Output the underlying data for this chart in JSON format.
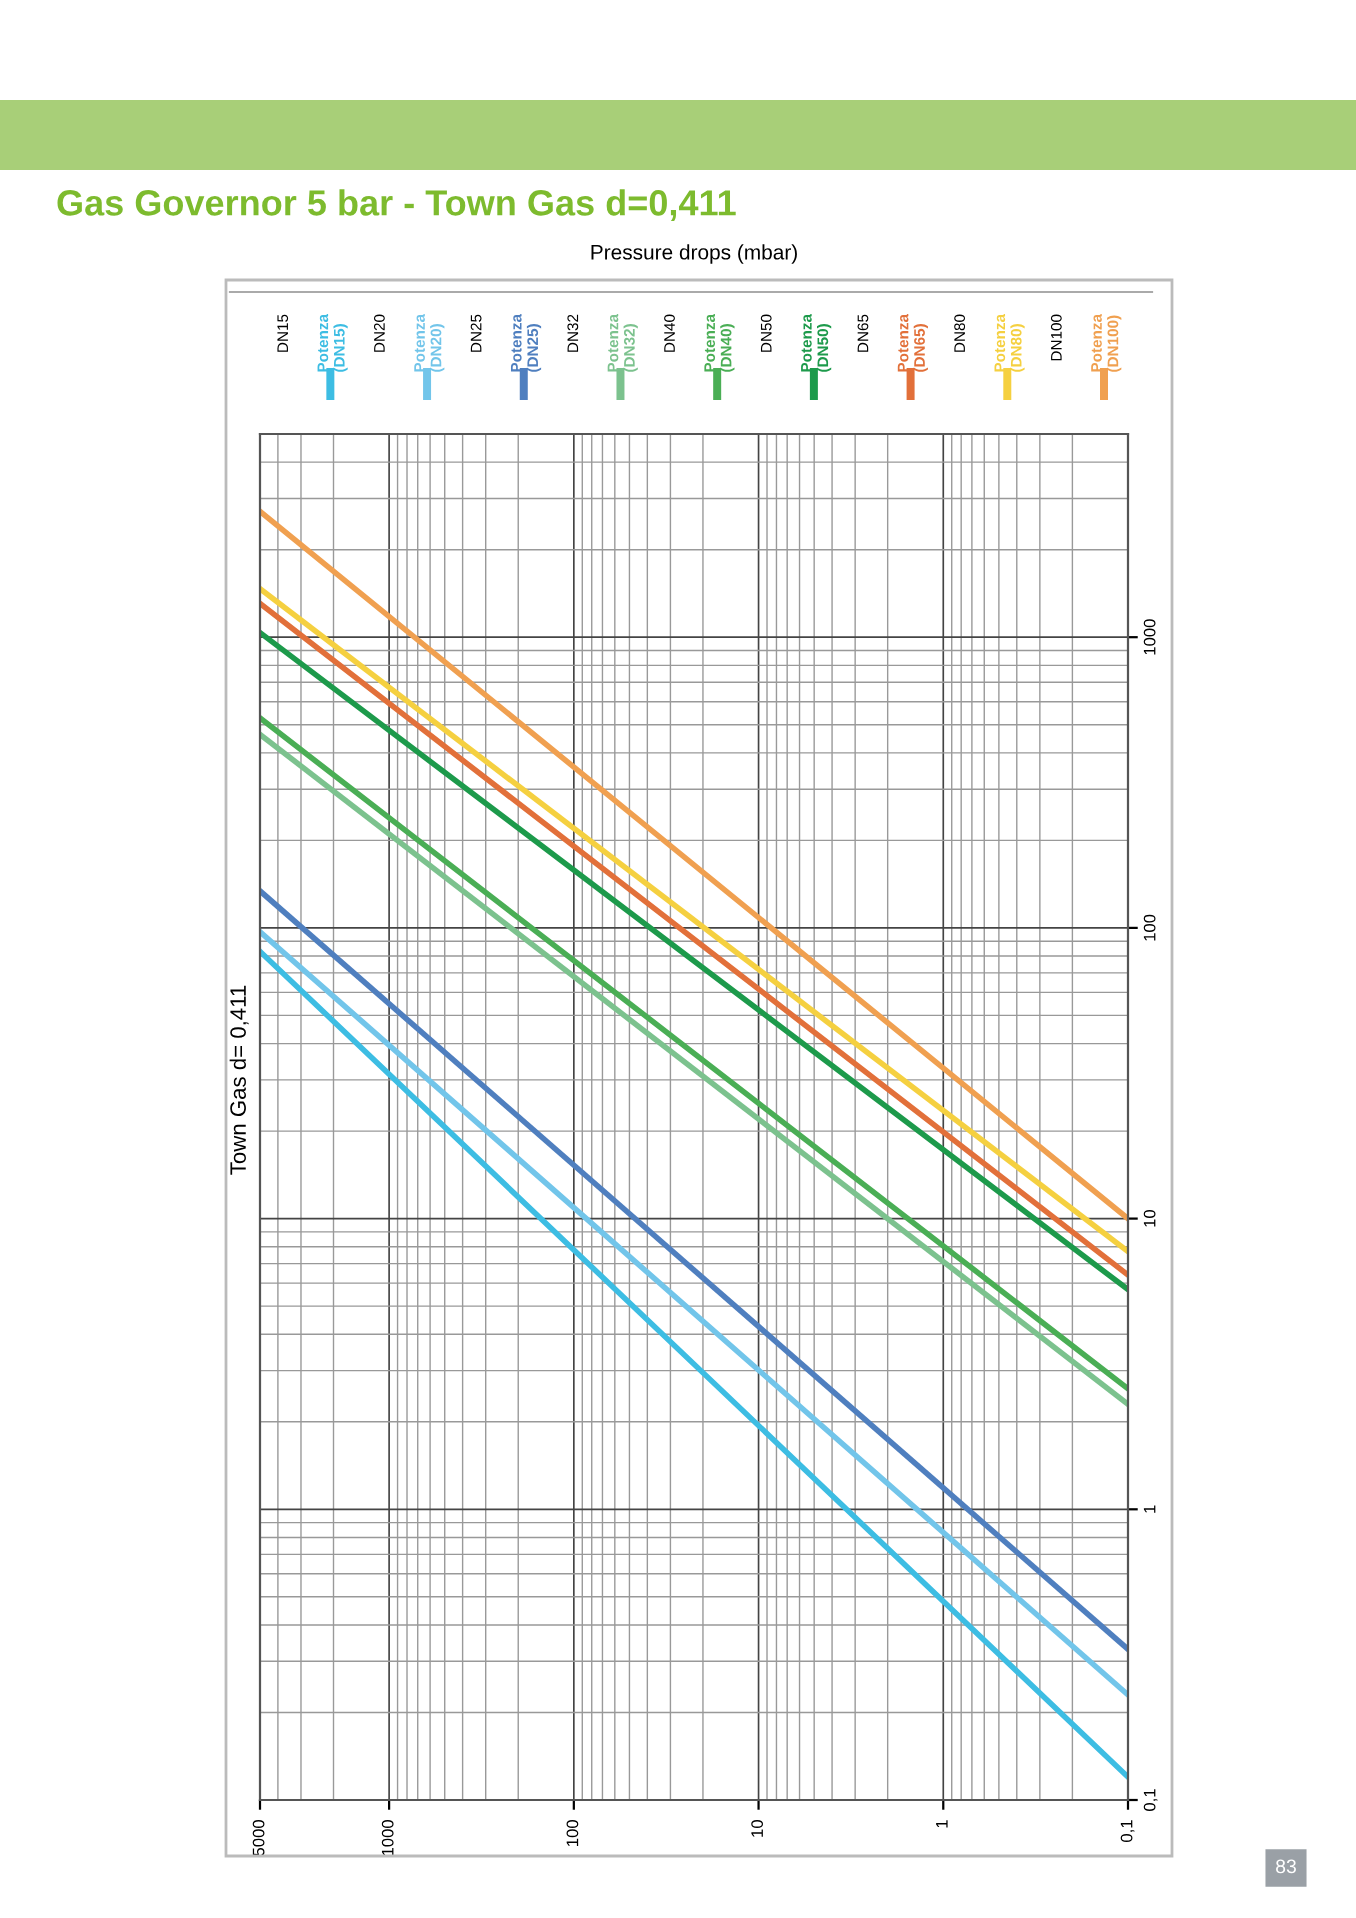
{
  "chart_data": {
    "type": "line",
    "title": "Gas Governor 5 bar - Town Gas d=0,411",
    "subtitle": "Pressure drops (mbar)",
    "annotations": [
      "DN15",
      "DN20",
      "DN25",
      "DN32",
      "DN40",
      "DN50",
      "DN65",
      "DN80",
      "DN100",
      "Town Gas d= 0,411",
      "83"
    ],
    "x": [
      5000,
      0.1
    ],
    "series": [
      {
        "name": "Potenza\n(DN15)",
        "color": "#3dbde3",
        "values": [
          83,
          0.12
        ]
      },
      {
        "name": "Potenza\n(DN20)",
        "color": "#72c5ea",
        "values": [
          97,
          0.23
        ]
      },
      {
        "name": "Potenza\n(DN25)",
        "color": "#4f7fbf",
        "values": [
          134,
          0.33
        ]
      },
      {
        "name": "Potenza\n(DN32)",
        "color": "#7cc28e",
        "values": [
          463,
          2.3
        ]
      },
      {
        "name": "Potenza\n(DN40)",
        "color": "#4aae55",
        "values": [
          527,
          2.6
        ]
      },
      {
        "name": "Potenza\n(DN50)",
        "color": "#1d9a4b",
        "values": [
          1037,
          5.7
        ]
      },
      {
        "name": "Potenza\n(DN65)",
        "color": "#e2703a",
        "values": [
          1306,
          6.4
        ]
      },
      {
        "name": "Potenza\n(DN80)",
        "color": "#f5d040",
        "values": [
          1468,
          7.7
        ]
      },
      {
        "name": "Potenza\n(DN100)",
        "color": "#f0a050",
        "values": [
          2710,
          10
        ]
      }
    ],
    "log": "xy",
    "xlim": [
      5000,
      0.1
    ],
    "xticks": [
      5000,
      1000,
      100,
      10,
      1,
      {
        "value": 0.1,
        "label": "0,1"
      }
    ],
    "ylim": [
      0.1,
      5000
    ],
    "yticks": [
      {
        "value": 0.1,
        "label": "0,1"
      },
      1,
      10,
      100,
      1000
    ],
    "grid": true,
    "legend": "top",
    "marker": "none",
    "line_style": "solid"
  }
}
